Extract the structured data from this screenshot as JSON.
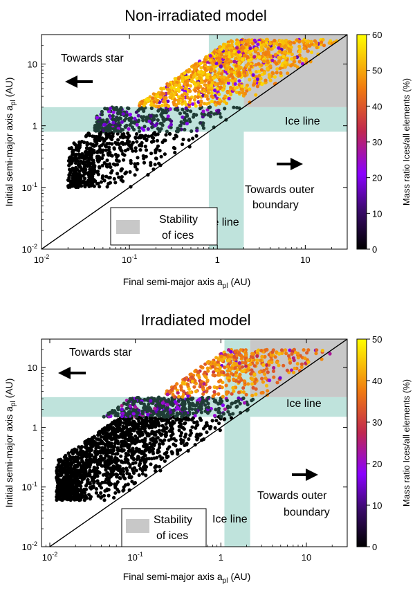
{
  "chart_data": [
    {
      "type": "scatter",
      "title": "Non-irradiated model",
      "xlabel": "Final semi-major axis a",
      "xlabel_sub": "pl",
      "xlabel_unit": "(AU)",
      "ylabel": "Initial semi-major axis a",
      "ylabel_sub": "pl",
      "ylabel_unit": "(AU)",
      "x_scale": "log",
      "y_scale": "log",
      "xlim": [
        0.01,
        30
      ],
      "ylim": [
        0.01,
        30
      ],
      "x_ticks": [
        0.01,
        0.1,
        1,
        10
      ],
      "y_ticks": [
        0.01,
        0.1,
        1,
        10
      ],
      "x_tick_labels": [
        {
          "base": "10",
          "exp": "-2"
        },
        {
          "base": "10",
          "exp": "-1"
        },
        {
          "base": "1",
          "exp": ""
        },
        {
          "base": "10",
          "exp": ""
        }
      ],
      "y_tick_labels": [
        {
          "base": "10",
          "exp": "-2"
        },
        {
          "base": "10",
          "exp": "-1"
        },
        {
          "base": "1",
          "exp": ""
        },
        {
          "base": "10",
          "exp": ""
        }
      ],
      "reference_line": "y = x",
      "ice_line_band": [
        0.8,
        2.0
      ],
      "stability_region": {
        "x_min": 2.0,
        "y_min": 2.0
      },
      "colorbar": {
        "label": "Mass ratio Ices/all elements (%)",
        "range": [
          0,
          60
        ],
        "ticks": [
          0,
          10,
          20,
          30,
          40,
          50,
          60
        ]
      },
      "annotations": {
        "towards_star": "Towards star",
        "towards_outer_1": "Towards outer",
        "towards_outer_2": "boundary",
        "ice_line_horizontal": "Ice line",
        "ice_line_vertical": "Ice line",
        "legend_line1": "Stability",
        "legend_line2": "of ices"
      },
      "point_groups": [
        {
          "region": "inner rocky",
          "x_range": [
            0.02,
            0.8
          ],
          "y_range": [
            0.1,
            0.8
          ],
          "ice_pct": 0
        },
        {
          "region": "ice line band",
          "x_range": [
            0.04,
            2.0
          ],
          "y_range": [
            0.8,
            2.0
          ],
          "ice_pct": 8
        },
        {
          "region": "outer icy",
          "x_range": [
            0.06,
            30
          ],
          "y_range": [
            2.0,
            25
          ],
          "ice_pct": 50
        }
      ]
    },
    {
      "type": "scatter",
      "title": "Irradiated model",
      "xlabel": "Final semi-major axis a",
      "xlabel_sub": "pl",
      "xlabel_unit": "(AU)",
      "ylabel": "Initial semi-major axis a",
      "ylabel_sub": "pl",
      "ylabel_unit": "(AU)",
      "x_scale": "log",
      "y_scale": "log",
      "xlim": [
        0.008,
        30
      ],
      "ylim": [
        0.01,
        30
      ],
      "x_ticks": [
        0.01,
        0.1,
        1,
        10
      ],
      "y_ticks": [
        0.01,
        0.1,
        1,
        10
      ],
      "x_tick_labels": [
        {
          "base": "10",
          "exp": "-2"
        },
        {
          "base": "10",
          "exp": "-1"
        },
        {
          "base": "1",
          "exp": ""
        },
        {
          "base": "10",
          "exp": ""
        }
      ],
      "y_tick_labels": [
        {
          "base": "10",
          "exp": "-2"
        },
        {
          "base": "10",
          "exp": "-1"
        },
        {
          "base": "1",
          "exp": ""
        },
        {
          "base": "10",
          "exp": ""
        }
      ],
      "reference_line": "y = x",
      "ice_line_band": [
        1.5,
        3.2
      ],
      "ice_line_band_x": [
        1.1,
        2.2
      ],
      "stability_region": {
        "x_min": 2.2,
        "y_min": 3.2
      },
      "colorbar": {
        "label": "Mass ratio Ices/all elements (%)",
        "range": [
          0,
          50
        ],
        "ticks": [
          0,
          10,
          20,
          30,
          40,
          50
        ]
      },
      "annotations": {
        "towards_star": "Towards star",
        "towards_outer_1": "Towards outer",
        "towards_outer_2": "boundary",
        "ice_line_horizontal": "Ice line",
        "ice_line_vertical": "Ice line",
        "legend_line1": "Stability",
        "legend_line2": "of ices"
      },
      "point_groups": [
        {
          "region": "inner rocky",
          "x_range": [
            0.012,
            1.5
          ],
          "y_range": [
            0.06,
            1.5
          ],
          "ice_pct": 0
        },
        {
          "region": "ice line band",
          "x_range": [
            0.02,
            3.2
          ],
          "y_range": [
            1.5,
            3.2
          ],
          "ice_pct": 10
        },
        {
          "region": "outer icy",
          "x_range": [
            0.03,
            30
          ],
          "y_range": [
            3.2,
            20
          ],
          "ice_pct": 38
        }
      ]
    }
  ],
  "colors": {
    "ice_band": "#bfe3dc",
    "stability": "#c8c8c8",
    "rocky": "#000000",
    "band_dark": "#1f3d36"
  }
}
